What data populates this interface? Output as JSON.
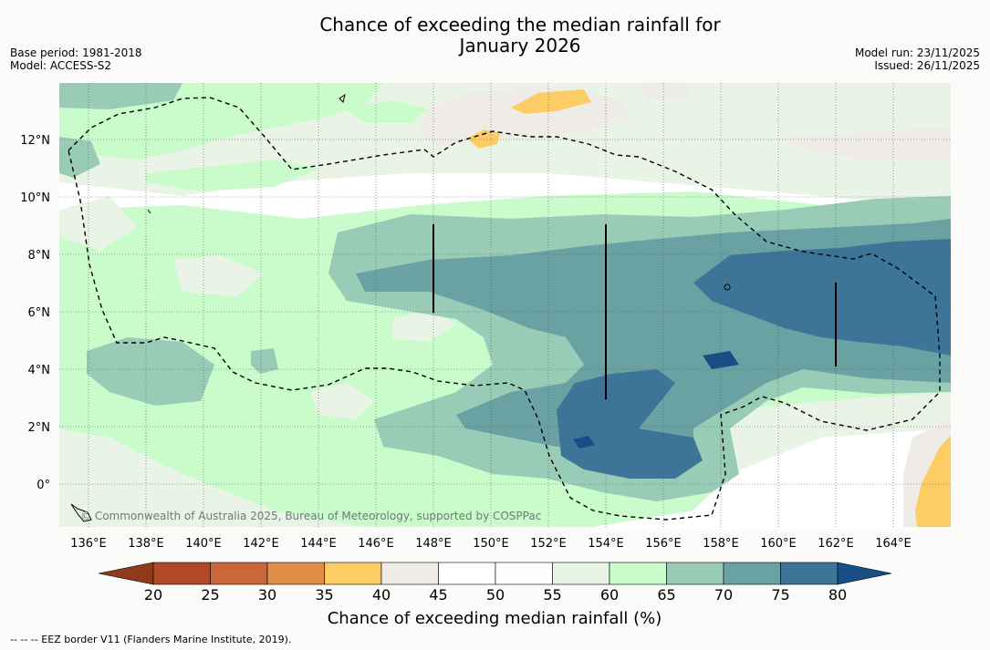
{
  "title_line1": "Chance of exceeding the median rainfall for",
  "title_line2": "January 2026",
  "base_period": "Base period: 1981-2018",
  "model": "Model: ACCESS-S2",
  "model_run": "Model run: 23/11/2025",
  "issued": "Issued: 26/11/2025",
  "copyright": "© Commonwealth of Australia 2025, Bureau of Meteorology, supported by COSPPac",
  "lat_labels": [
    "12°N",
    "10°N",
    "8°N",
    "6°N",
    "4°N",
    "2°N",
    "0°"
  ],
  "lon_labels": [
    "136°E",
    "138°E",
    "140°E",
    "142°E",
    "144°E",
    "146°E",
    "148°E",
    "150°E",
    "152°E",
    "154°E",
    "156°E",
    "158°E",
    "160°E",
    "162°E",
    "164°E"
  ],
  "colorbar": {
    "label": "Chance of exceeding median rainfall (%)",
    "ticks": [
      "20",
      "25",
      "30",
      "35",
      "40",
      "45",
      "50",
      "55",
      "60",
      "65",
      "70",
      "75",
      "80"
    ],
    "colors": [
      "#8f3b1b",
      "#b04a26",
      "#c9663a",
      "#df8f47",
      "#fdcd65",
      "#efebe7",
      "#ffffff",
      "#fefefe",
      "#e9f4e7",
      "#c9fbcb",
      "#99ccb7",
      "#6aa2a4",
      "#3c7597",
      "#174e86"
    ]
  },
  "footnote": "--  --  -- EEZ border V11 (Flanders Marine Institute, 2019)."
}
